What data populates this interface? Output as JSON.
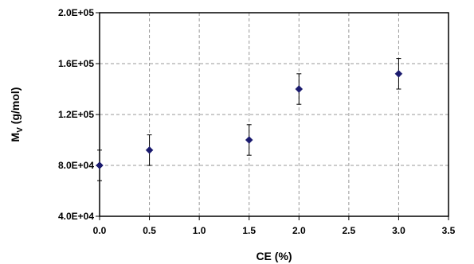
{
  "chart_data": {
    "type": "scatter",
    "title": "",
    "xlabel": "CE (%)",
    "ylabel_main": "M",
    "ylabel_sub": "V",
    "ylabel_unit": " (g/mol)",
    "xlim": [
      0,
      3.5
    ],
    "ylim": [
      40000,
      200000
    ],
    "x_ticks": [
      0,
      0.5,
      1,
      1.5,
      2,
      2.5,
      3,
      3.5
    ],
    "x_tick_labels": [
      "0.0",
      "0.5",
      "1.0",
      "1.5",
      "2.0",
      "2.5",
      "3.0",
      "3.5"
    ],
    "y_ticks": [
      40000,
      80000,
      120000,
      160000,
      200000
    ],
    "y_tick_labels": [
      "4.0E+04",
      "8.0E+04",
      "1.2E+05",
      "1.6E+05",
      "2.0E+05"
    ],
    "grid": true,
    "legend": "none",
    "marker": "diamond",
    "marker_color": "#1a1a6e",
    "points": [
      {
        "x": 0.0,
        "y": 80000,
        "err": 12000
      },
      {
        "x": 0.5,
        "y": 92000,
        "err": 12000
      },
      {
        "x": 1.5,
        "y": 100000,
        "err": 12000
      },
      {
        "x": 2.0,
        "y": 140000,
        "err": 12000
      },
      {
        "x": 3.0,
        "y": 152000,
        "err": 12000
      }
    ]
  }
}
